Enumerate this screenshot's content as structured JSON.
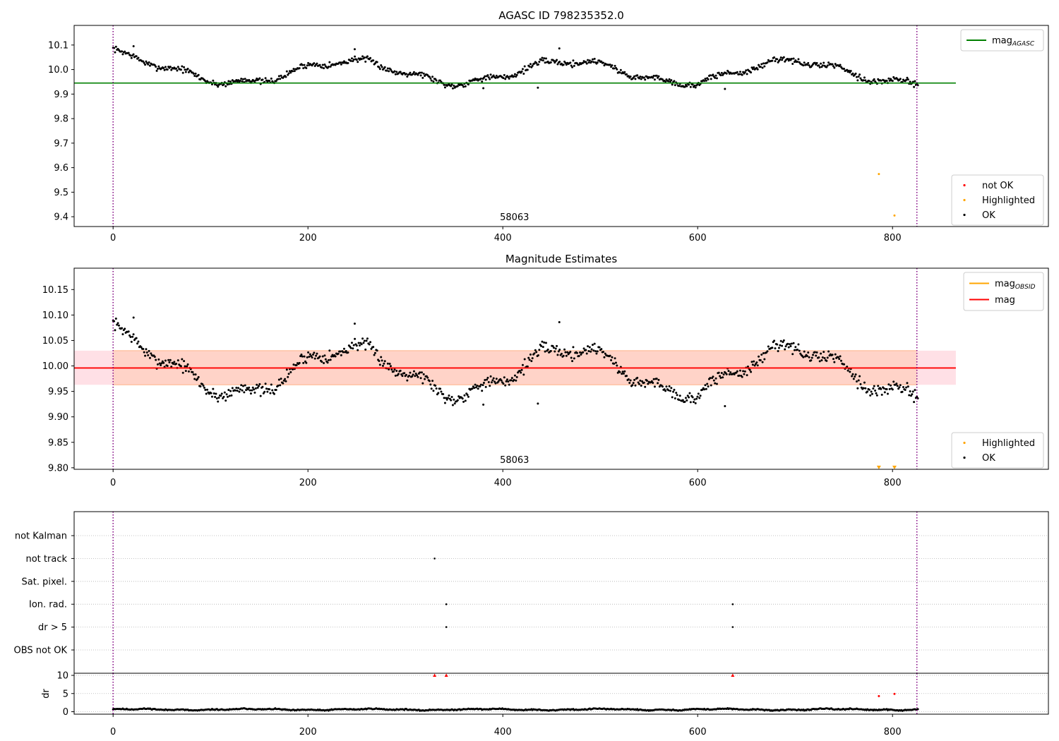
{
  "chart_data": [
    {
      "type": "scatter",
      "title": "AGASC ID 798235352.0",
      "xlabel": "",
      "ylabel": "",
      "xlim": [
        -40,
        960
      ],
      "ylim": [
        9.36,
        10.18
      ],
      "xticks": [
        "0",
        "200",
        "400",
        "600",
        "800"
      ],
      "yticks": [
        "9.4",
        "9.5",
        "9.6",
        "9.7",
        "9.8",
        "9.9",
        "10.0",
        "10.1"
      ],
      "ref_lines": [
        {
          "name": "mag_AGASC",
          "y": 9.945,
          "x_end": 865,
          "color": "#008000"
        }
      ],
      "obs_bounds": [
        0,
        825
      ],
      "annotation": {
        "text": "58063",
        "x": 412
      },
      "legend_upper": {
        "position": "top-right",
        "entries": [
          {
            "label": "mag",
            "sub": "AGASC",
            "color": "#008000"
          }
        ]
      },
      "legend_lower": {
        "position": "bottom-right",
        "entries": [
          {
            "label": "not OK",
            "color": "#ff0000"
          },
          {
            "label": "Highlighted",
            "color": "#ffa500"
          },
          {
            "label": "OK",
            "color": "#000000"
          }
        ]
      },
      "series": [
        {
          "name": "OK",
          "color": "#000000",
          "generator": {
            "n": 830,
            "x_start": 0,
            "x_end": 826,
            "base": 9.99,
            "amps": [
              0.045,
              0.012
            ],
            "periods": [
              228,
              61
            ],
            "phases": [
              1.2,
              0.3
            ],
            "noise": 0.012,
            "start_offset": 0.05,
            "seed": 7
          }
        },
        {
          "name": "OK",
          "color": "#000000",
          "points": [
            [
              436,
              9.926
            ],
            [
              628,
              9.921
            ],
            [
              380,
              9.924
            ],
            [
              248,
              10.083
            ],
            [
              458,
              10.086
            ],
            [
              21,
              10.095
            ]
          ]
        },
        {
          "name": "Highlighted",
          "color": "#ffa500",
          "points": [
            [
              786,
              9.574
            ],
            [
              802,
              9.405
            ]
          ]
        }
      ]
    },
    {
      "type": "scatter",
      "title": "Magnitude Estimates",
      "xlabel": "",
      "ylabel": "",
      "xlim": [
        -40,
        960
      ],
      "ylim": [
        9.797,
        10.192
      ],
      "xticks": [
        "0",
        "200",
        "400",
        "600",
        "800"
      ],
      "yticks": [
        "9.80",
        "9.85",
        "9.90",
        "9.95",
        "10.00",
        "10.05",
        "10.10",
        "10.15"
      ],
      "band": {
        "y_low": 9.963,
        "y_high": 10.03,
        "x_end": 865,
        "fill": "#ffd2c4",
        "outer_fill": "#ffe0e6"
      },
      "ref_lines": [
        {
          "name": "mag",
          "y": 9.996,
          "x_end": 865,
          "color": "#ff0000"
        }
      ],
      "obs_bounds": [
        0,
        825
      ],
      "annotation": {
        "text": "58063",
        "x": 412
      },
      "legend_upper": {
        "position": "top-right",
        "entries": [
          {
            "label": "mag",
            "sub": "OBSID",
            "color": "#ffa500"
          },
          {
            "label": "mag",
            "sub": "",
            "color": "#ff0000"
          }
        ]
      },
      "legend_lower": {
        "position": "bottom-right",
        "entries": [
          {
            "label": "Highlighted",
            "color": "#ffa500"
          },
          {
            "label": "OK",
            "color": "#000000"
          }
        ]
      },
      "series": [
        {
          "name": "OK",
          "color": "#000000",
          "generator": {
            "n": 830,
            "x_start": 0,
            "x_end": 826,
            "base": 9.99,
            "amps": [
              0.045,
              0.012
            ],
            "periods": [
              228,
              61
            ],
            "phases": [
              1.2,
              0.3
            ],
            "noise": 0.012,
            "start_offset": 0.05,
            "seed": 7
          }
        },
        {
          "name": "OK",
          "color": "#000000",
          "points": [
            [
              436,
              9.926
            ],
            [
              628,
              9.921
            ],
            [
              380,
              9.924
            ],
            [
              248,
              10.083
            ],
            [
              458,
              10.086
            ],
            [
              21,
              10.095
            ]
          ]
        },
        {
          "name": "Highlighted",
          "color": "#ffa500",
          "marker": "triangle-down",
          "points": [
            [
              786,
              9.8
            ],
            [
              802,
              9.8
            ]
          ]
        }
      ]
    },
    {
      "type": "scatter",
      "title": "",
      "xlabel": "",
      "ylabel": "",
      "xlim": [
        -40,
        960
      ],
      "categories": [
        "not Kalman",
        "not track",
        "Sat. pixel.",
        "Ion. rad.",
        "dr > 5",
        "OBS not OK"
      ],
      "obs_bounds": [
        0,
        825
      ],
      "flag_points": [
        {
          "category": "not track",
          "x": 330
        },
        {
          "category": "Ion. rad.",
          "x": 342
        },
        {
          "category": "Ion. rad.",
          "x": 636
        },
        {
          "category": "dr > 5",
          "x": 342
        },
        {
          "category": "dr > 5",
          "x": 636
        }
      ]
    },
    {
      "type": "scatter",
      "title": "",
      "xlabel": "",
      "ylabel": "dr",
      "xlim": [
        -40,
        960
      ],
      "ylim": [
        -0.5,
        10.5
      ],
      "xticks": [
        "0",
        "200",
        "400",
        "600",
        "800"
      ],
      "yticks": [
        "0",
        "5",
        "10"
      ],
      "obs_bounds": [
        0,
        825
      ],
      "series": [
        {
          "name": "dr",
          "color": "#000000",
          "generator": {
            "n": 830,
            "x_start": 0,
            "x_end": 826,
            "base": 0.6,
            "amps": [
              0.15,
              0.1
            ],
            "periods": [
              120,
              33
            ],
            "phases": [
              0.4,
              1.1
            ],
            "noise": 0.15,
            "start_offset": 0,
            "seed": 11
          }
        },
        {
          "name": "dr",
          "color": "#ff0000",
          "marker": "triangle-up",
          "points": [
            [
              330,
              10
            ],
            [
              342,
              10
            ],
            [
              636,
              10
            ]
          ]
        },
        {
          "name": "dr",
          "color": "#ff0000",
          "points": [
            [
              786,
              4.3
            ],
            [
              802,
              4.9
            ]
          ]
        }
      ]
    }
  ]
}
